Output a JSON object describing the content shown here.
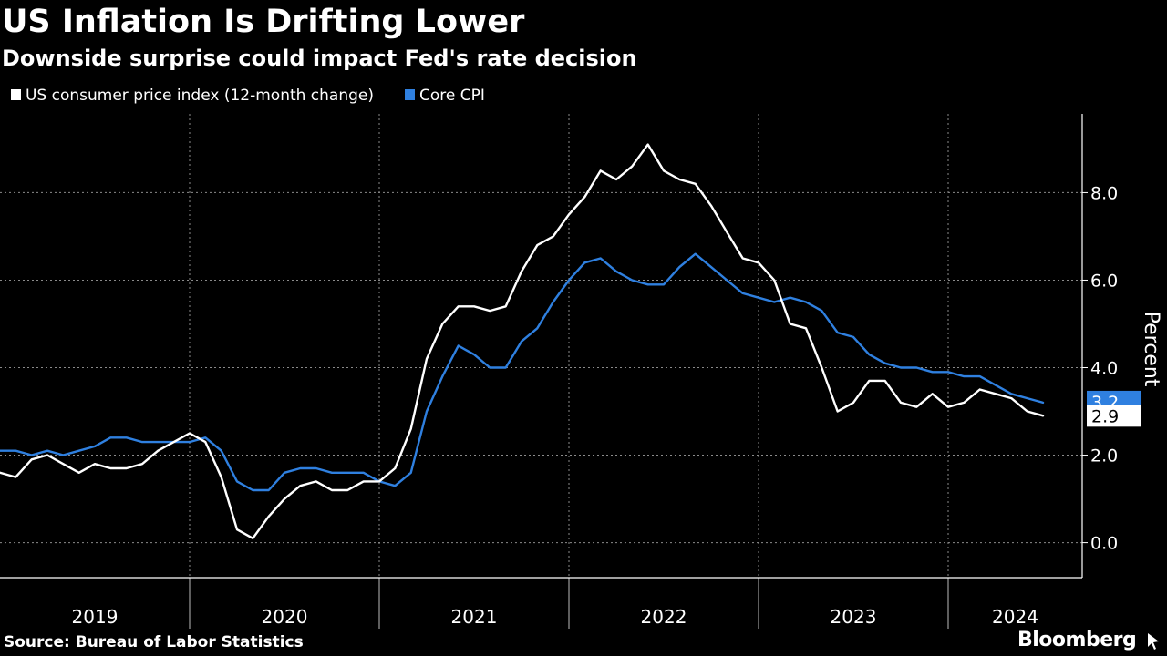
{
  "title": "US Inflation Is Drifting Lower",
  "subtitle": "Downside surprise could impact Fed's rate decision",
  "source": "Source: Bureau of Labor Statistics",
  "brand": "Bloomberg",
  "colors": {
    "background": "#000000",
    "cpi": "#ffffff",
    "core": "#2f80e0",
    "grid": "#8a8a8a",
    "axis": "#ffffff"
  },
  "chart_data": {
    "type": "line",
    "ylabel": "Percent",
    "ylim": [
      -0.8,
      9.8
    ],
    "yticks": [
      0,
      2,
      4,
      6,
      8
    ],
    "ytick_labels": [
      "0.0",
      "2.0",
      "4.0",
      "6.0",
      "8.0"
    ],
    "x_start": "2019-01",
    "xlim": [
      "2019-01",
      "2024-07"
    ],
    "x_labels": [
      "2019",
      "2020",
      "2021",
      "2022",
      "2023",
      "2024"
    ],
    "grid": true,
    "legend_position": "top-left",
    "series": [
      {
        "name": "US consumer price index (12-month change)",
        "color": "#ffffff",
        "end_label": "2.9",
        "values": [
          1.6,
          1.5,
          1.9,
          2.0,
          1.8,
          1.6,
          1.8,
          1.7,
          1.7,
          1.8,
          2.1,
          2.3,
          2.5,
          2.3,
          1.5,
          0.3,
          0.1,
          0.6,
          1.0,
          1.3,
          1.4,
          1.2,
          1.2,
          1.4,
          1.4,
          1.7,
          2.6,
          4.2,
          5.0,
          5.4,
          5.4,
          5.3,
          5.4,
          6.2,
          6.8,
          7.0,
          7.5,
          7.9,
          8.5,
          8.3,
          8.6,
          9.1,
          8.5,
          8.3,
          8.2,
          7.7,
          7.1,
          6.5,
          6.4,
          6.0,
          5.0,
          4.9,
          4.0,
          3.0,
          3.2,
          3.7,
          3.7,
          3.2,
          3.1,
          3.4,
          3.1,
          3.2,
          3.5,
          3.4,
          3.3,
          3.0,
          2.9
        ]
      },
      {
        "name": "Core CPI",
        "color": "#2f80e0",
        "end_label": "3.2",
        "values": [
          2.1,
          2.1,
          2.0,
          2.1,
          2.0,
          2.1,
          2.2,
          2.4,
          2.4,
          2.3,
          2.3,
          2.3,
          2.3,
          2.4,
          2.1,
          1.4,
          1.2,
          1.2,
          1.6,
          1.7,
          1.7,
          1.6,
          1.6,
          1.6,
          1.4,
          1.3,
          1.6,
          3.0,
          3.8,
          4.5,
          4.3,
          4.0,
          4.0,
          4.6,
          4.9,
          5.5,
          6.0,
          6.4,
          6.5,
          6.2,
          6.0,
          5.9,
          5.9,
          6.3,
          6.6,
          6.3,
          6.0,
          5.7,
          5.6,
          5.5,
          5.6,
          5.5,
          5.3,
          4.8,
          4.7,
          4.3,
          4.1,
          4.0,
          4.0,
          3.9,
          3.9,
          3.8,
          3.8,
          3.6,
          3.4,
          3.3,
          3.2
        ]
      }
    ]
  }
}
